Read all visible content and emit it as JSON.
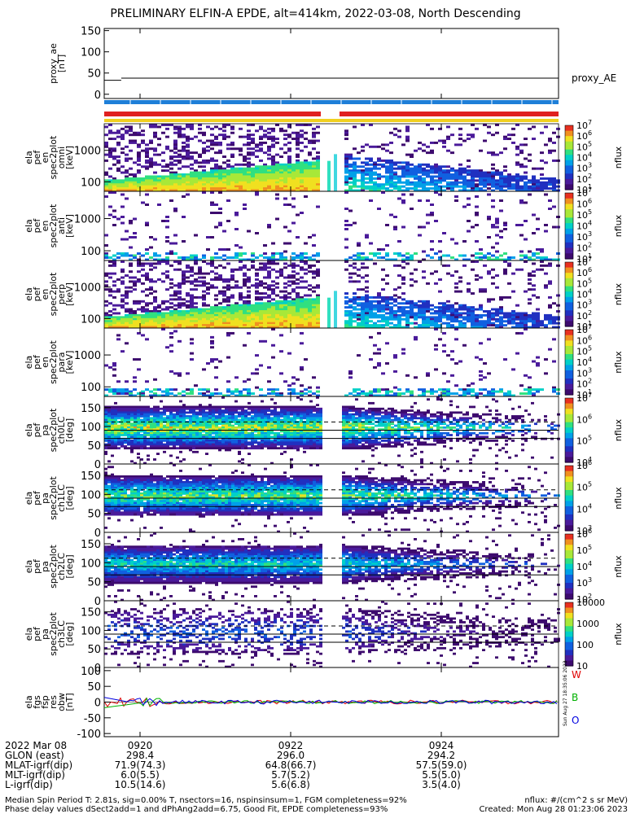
{
  "title": "PRELIMINARY ELFIN-A EPDE, alt=414km, 2022-03-08, North Descending",
  "side_stamp": "Sun Aug 27 18:35:06 2023",
  "colors": {
    "fgs_w": "#e00000",
    "fgs_b": "#00b000",
    "fgs_o": "#0000e0",
    "bar_blue": "#1e7fd8",
    "bar_red": "#e02020",
    "bar_yellow": "#f0d020"
  },
  "chart_data": [
    {
      "id": "proxy_ae",
      "type": "line",
      "ylabel": [
        "proxy_ae",
        "[nT]"
      ],
      "ylim": [
        -10,
        155
      ],
      "yticks": [
        "150",
        "100",
        "50",
        "0"
      ],
      "yticks_values": [
        150,
        100,
        50,
        0
      ],
      "series": [
        {
          "name": "proxy_AE",
          "x": [
            "0918:50",
            "0919:45"
          ],
          "values": [
            33,
            33
          ]
        },
        {
          "name": "proxy_AE",
          "x": [
            "0919:45",
            "0926:00"
          ],
          "values": [
            38,
            38
          ]
        }
      ]
    },
    {
      "id": "ela_pef_en_spec2plot_omni",
      "type": "heatmap",
      "ylabel": [
        "ela",
        "pef",
        "en",
        "spec2plot",
        "omni",
        "[keV]"
      ],
      "yscale": "log",
      "ylim": [
        50,
        7000
      ],
      "yticks": [
        "1000",
        "100"
      ],
      "colorbar": {
        "label": "nflux",
        "ticks": [
          "10^7",
          "10^6",
          "10^5",
          "10^4",
          "10^3",
          "10^2",
          "10^1"
        ]
      }
    },
    {
      "id": "ela_pef_en_spec2plot_anti",
      "type": "heatmap",
      "ylabel": [
        "ela",
        "pef",
        "en",
        "spec2plot",
        "anti",
        "[keV]"
      ],
      "yscale": "log",
      "ylim": [
        50,
        7000
      ],
      "yticks": [
        "1000",
        "100"
      ],
      "colorbar": {
        "label": "nflux",
        "ticks": [
          "10^7",
          "10^6",
          "10^5",
          "10^4",
          "10^3",
          "10^2",
          "10^1"
        ]
      }
    },
    {
      "id": "ela_pef_en_spec2plot_perp",
      "type": "heatmap",
      "ylabel": [
        "ela",
        "pef",
        "en",
        "spec2plot",
        "perp",
        "[keV]"
      ],
      "yscale": "log",
      "ylim": [
        50,
        7000
      ],
      "yticks": [
        "1000",
        "100"
      ],
      "colorbar": {
        "label": "nflux",
        "ticks": [
          "10^7",
          "10^6",
          "10^5",
          "10^4",
          "10^3",
          "10^2",
          "10^1"
        ]
      }
    },
    {
      "id": "ela_pef_en_spec2plot_para",
      "type": "heatmap",
      "ylabel": [
        "ela",
        "pef",
        "en",
        "spec2plot",
        "para",
        "[keV]"
      ],
      "yscale": "log",
      "ylim": [
        50,
        7000
      ],
      "yticks": [
        "1000",
        "100"
      ],
      "colorbar": {
        "label": "nflux",
        "ticks": [
          "10^7",
          "10^6",
          "10^5",
          "10^4",
          "10^3",
          "10^2",
          "10^1"
        ]
      }
    },
    {
      "id": "ela_pef_pa_spec2plot_ch0LC",
      "type": "heatmap",
      "ylabel": [
        "ela",
        "pef",
        "pa",
        "spec2plot",
        "ch0LC",
        "[deg]"
      ],
      "ylim": [
        0,
        180
      ],
      "yticks": [
        "150",
        "100",
        "50",
        "0"
      ],
      "colorbar": {
        "label": "nflux",
        "ticks": [
          "10^7",
          "10^6",
          "10^5",
          "10^4"
        ]
      }
    },
    {
      "id": "ela_pef_pa_spec2plot_ch1LC",
      "type": "heatmap",
      "ylabel": [
        "ela",
        "pef",
        "pa",
        "spec2plot",
        "ch1LC",
        "[deg]"
      ],
      "ylim": [
        0,
        180
      ],
      "yticks": [
        "150",
        "100",
        "50",
        "0"
      ],
      "colorbar": {
        "label": "nflux",
        "ticks": [
          "10^6",
          "10^5",
          "10^4",
          "10^3"
        ]
      }
    },
    {
      "id": "ela_pef_pa_spec2plot_ch2LC",
      "type": "heatmap",
      "ylabel": [
        "ela",
        "pef",
        "pa",
        "spec2plot",
        "ch2LC",
        "[deg]"
      ],
      "ylim": [
        0,
        180
      ],
      "yticks": [
        "150",
        "100",
        "50",
        "0"
      ],
      "colorbar": {
        "label": "nflux",
        "ticks": [
          "10^6",
          "10^5",
          "10^4",
          "10^3",
          "10^2"
        ]
      }
    },
    {
      "id": "ela_pef_pa_spec2plot_ch3LC",
      "type": "heatmap",
      "ylabel": [
        "ela",
        "pef",
        "pa",
        "spec2plot",
        "ch3LC",
        "[deg]"
      ],
      "ylim": [
        0,
        180
      ],
      "yticks": [
        "150",
        "100",
        "50",
        "0"
      ],
      "colorbar": {
        "label": "nflux",
        "ticks": [
          "10000",
          "1000",
          "100",
          "10"
        ]
      }
    },
    {
      "id": "ela_fgs_fsp_res_obw",
      "type": "line",
      "ylabel": [
        "ela",
        "fgs",
        "fsp",
        "res",
        "obw",
        "[nT]"
      ],
      "ylim": [
        -110,
        110
      ],
      "yticks": [
        "100",
        "50",
        "0",
        "-50",
        "-100"
      ],
      "yticks_values": [
        100,
        50,
        0,
        -50,
        -100
      ],
      "legend": [
        "W",
        "B",
        "O"
      ]
    }
  ],
  "x_axis": {
    "tick_labels": [
      "0920",
      "0922",
      "0924"
    ],
    "rows": [
      {
        "label": "2022 Mar 08",
        "values": [
          "",
          "",
          ""
        ]
      },
      {
        "label": "GLON (east)",
        "values": [
          "298.4",
          "296.0",
          "294.2"
        ]
      },
      {
        "label": "MLAT-igrf(dip)",
        "values": [
          "71.9(74.3)",
          "64.8(66.7)",
          "57.5(59.0)"
        ]
      },
      {
        "label": "MLT-igrf(dip)",
        "values": [
          "6.0(5.5)",
          "5.7(5.2)",
          "5.5(5.0)"
        ]
      },
      {
        "label": "L-igrf(dip)",
        "values": [
          "10.5(14.6)",
          "5.6(6.8)",
          "3.5(4.0)"
        ]
      }
    ]
  },
  "footer": {
    "line1": "Median Spin Period T: 2.81s, sig=0.00% T, nsectors=16, nspinsinsum=1, FGM completeness=92%",
    "line2": "Phase delay values dSect2add=1 and dPhAng2add=6.75, Good Fit, EPDE completeness=93%",
    "units": "nflux: #/(cm^2 s sr MeV)",
    "created": "Created: Mon Aug 28 01:23:06 2023"
  }
}
